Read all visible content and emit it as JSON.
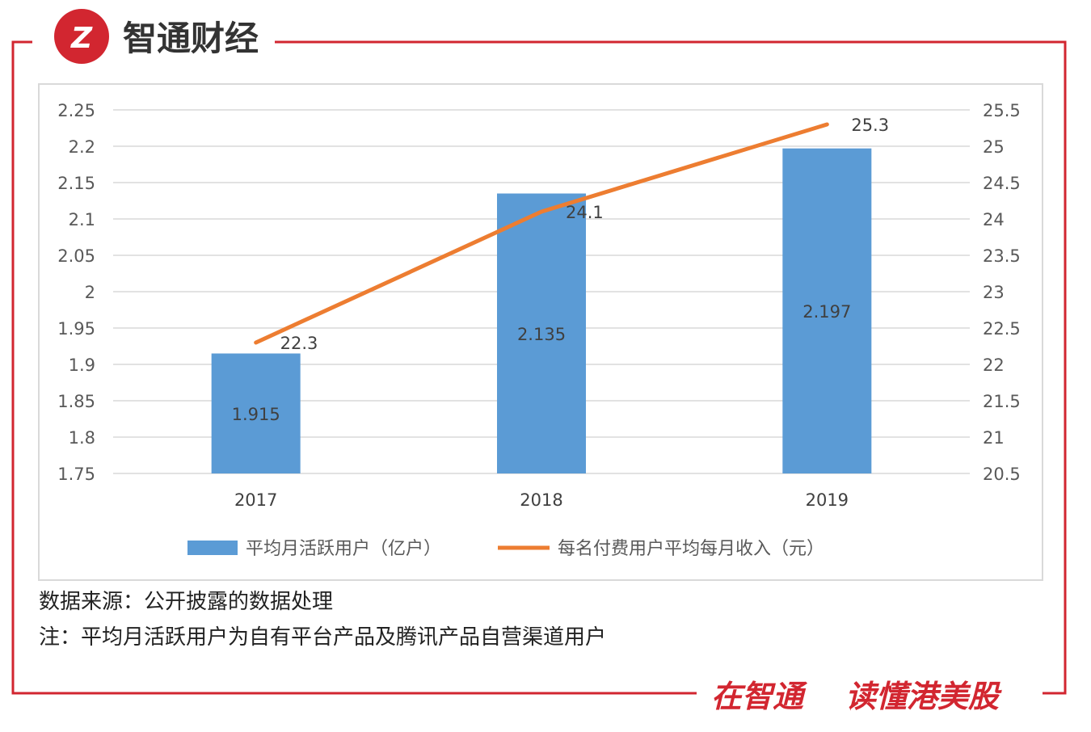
{
  "brand": {
    "logo_text": "智通财经",
    "slogan_left": "在智通",
    "slogan_right": "读懂港美股",
    "color": "#d22630"
  },
  "footnotes": {
    "source": "数据来源：公开披露的数据处理",
    "note": "注：平均月活跃用户为自有平台产品及腾讯产品自营渠道用户"
  },
  "chart_data": {
    "type": "bar",
    "categories": [
      "2017",
      "2018",
      "2019"
    ],
    "series": [
      {
        "name": "平均月活跃用户（亿户）",
        "kind": "bar",
        "axis": "left",
        "color": "#5b9bd5",
        "values": [
          1.915,
          2.135,
          2.197
        ],
        "labels": [
          "1.915",
          "2.135",
          "2.197"
        ]
      },
      {
        "name": "每名付费用户平均每月收入（元）",
        "kind": "line",
        "axis": "right",
        "color": "#ed7d31",
        "values": [
          22.3,
          24.1,
          25.3
        ],
        "labels": [
          "22.3",
          "24.1",
          "25.3"
        ]
      }
    ],
    "y_left": {
      "range": [
        1.75,
        2.25
      ],
      "ticks": [
        "2.25",
        "2.2",
        "2.15",
        "2.1",
        "2.05",
        "2",
        "1.95",
        "1.9",
        "1.85",
        "1.8",
        "1.75"
      ]
    },
    "y_right": {
      "range": [
        20.5,
        25.5
      ],
      "ticks": [
        "25.5",
        "25",
        "24.5",
        "24",
        "23.5",
        "23",
        "22.5",
        "22",
        "21.5",
        "21",
        "20.5"
      ]
    },
    "grid": true,
    "legend_position": "bottom"
  }
}
